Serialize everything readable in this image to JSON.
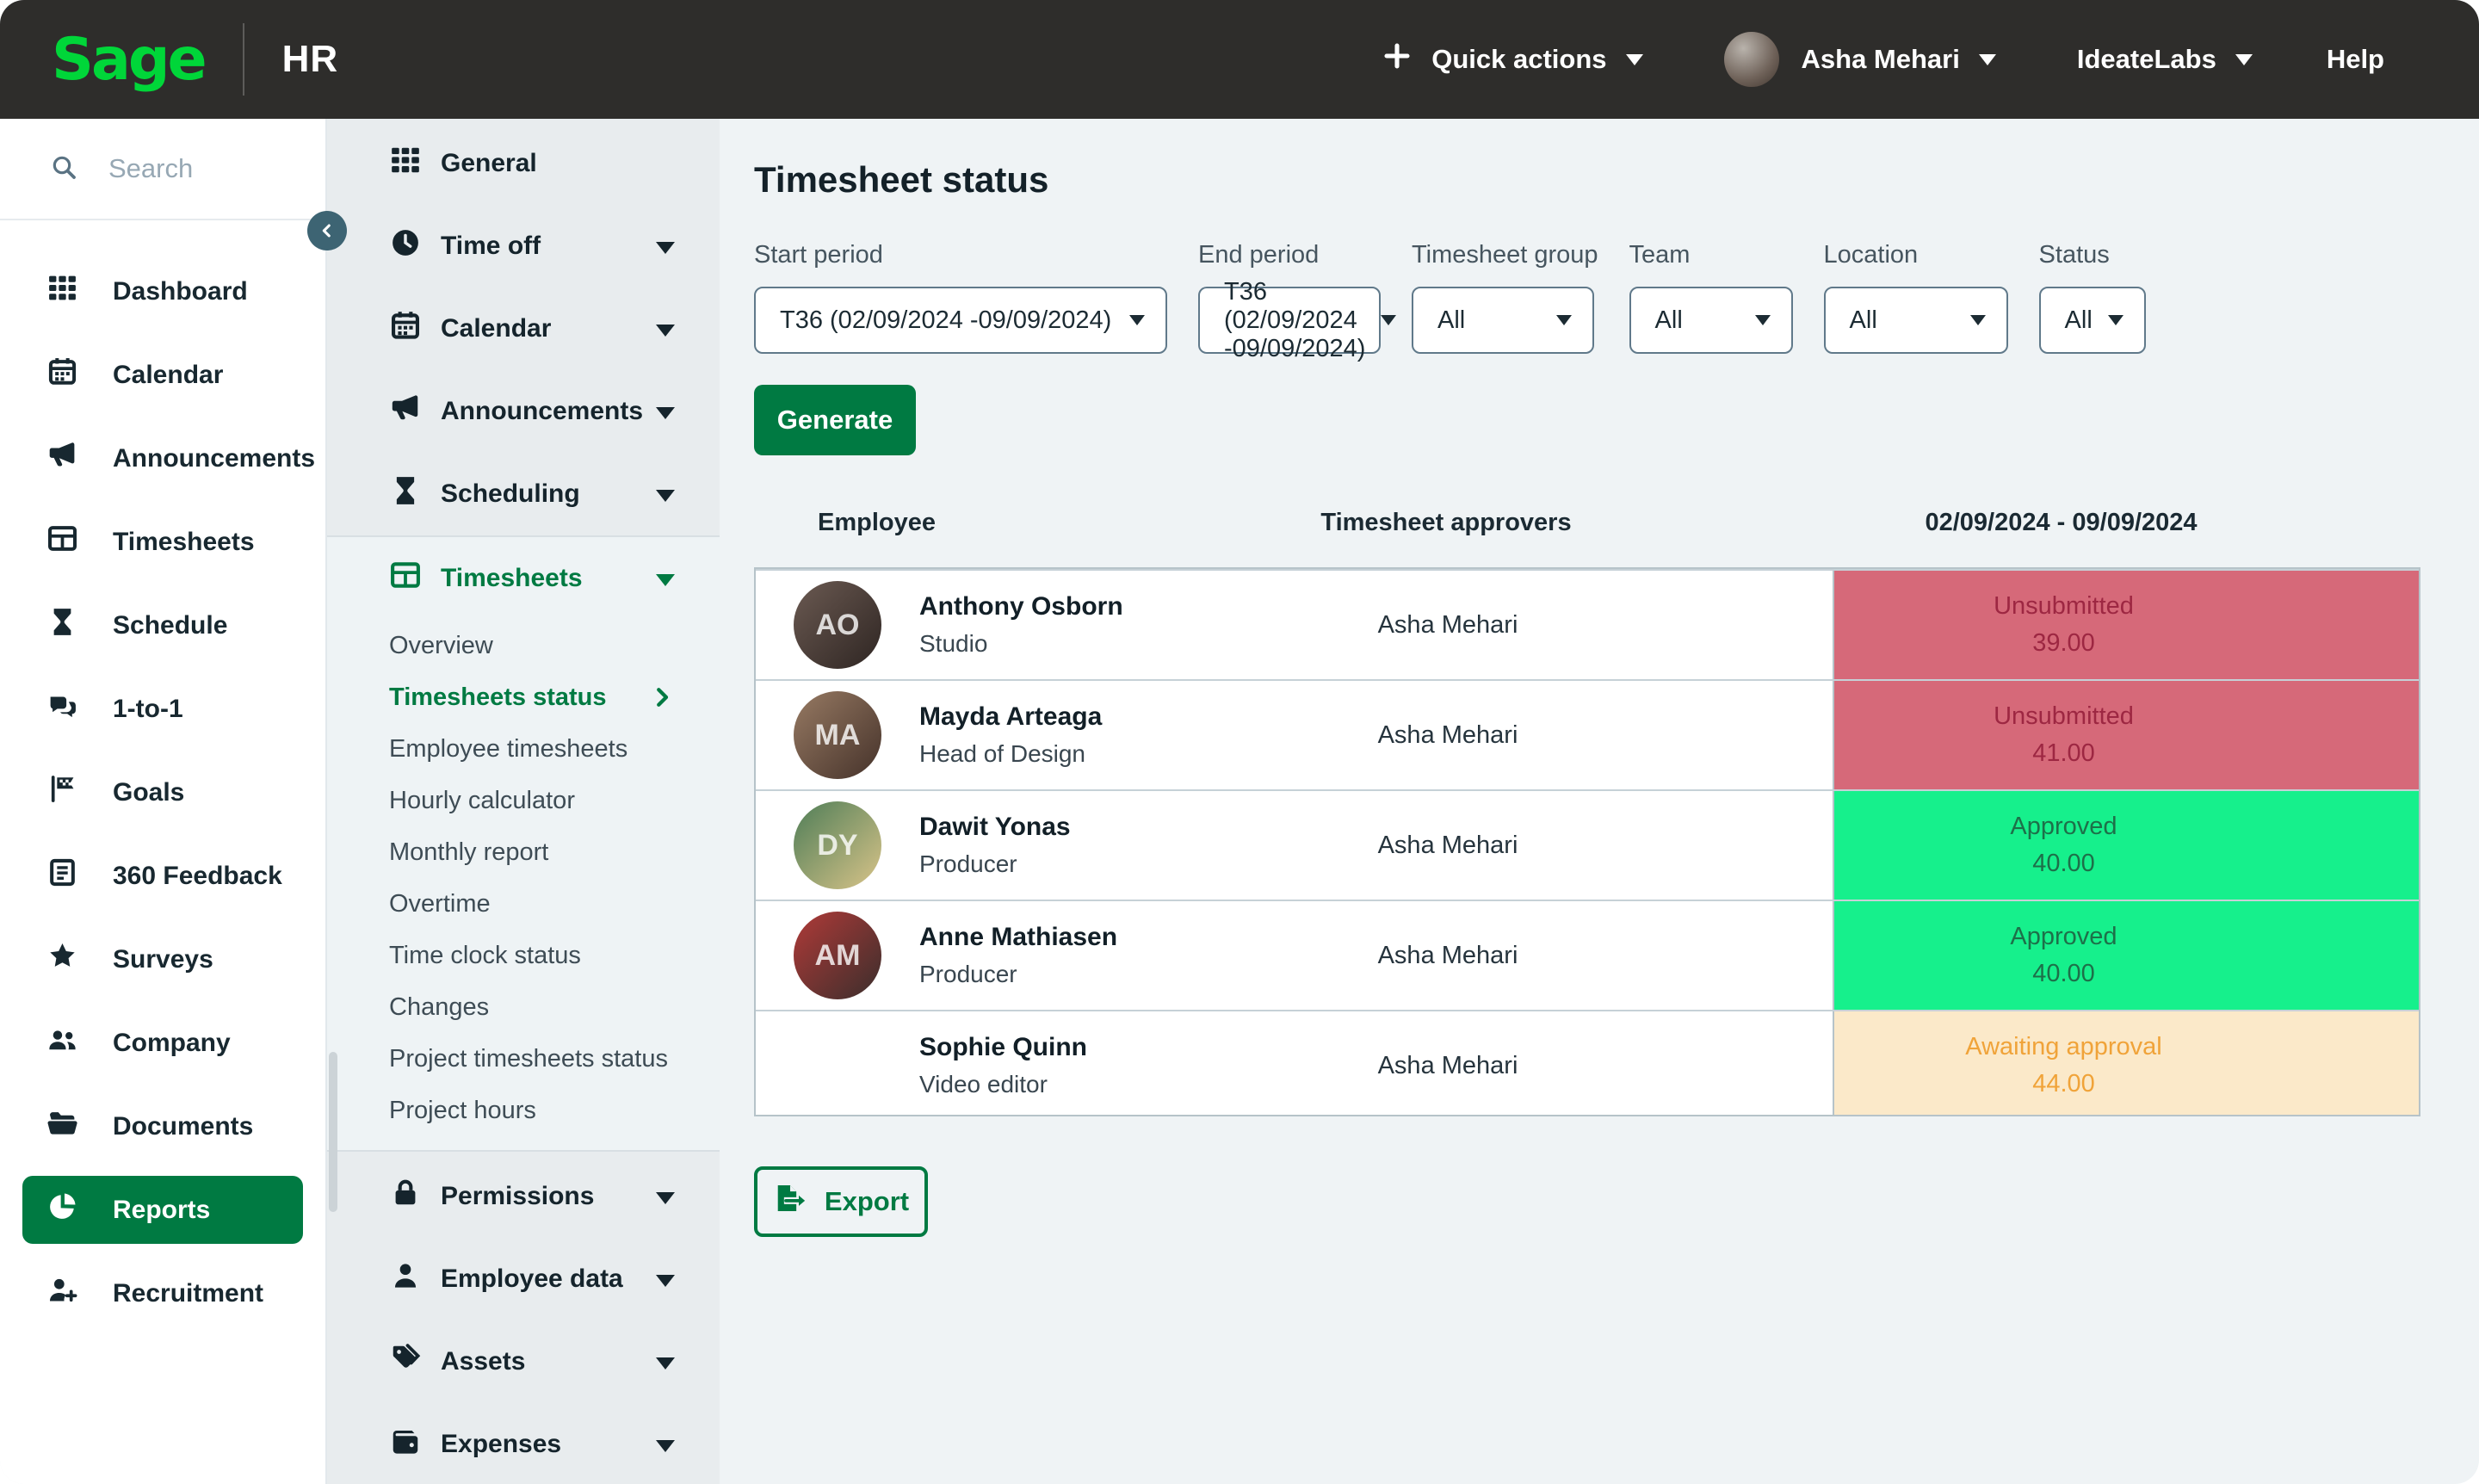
{
  "topbar": {
    "brand": "Sage",
    "product": "HR",
    "quick_actions_label": "Quick actions",
    "user_name": "Asha Mehari",
    "company_name": "IdeateLabs",
    "help_label": "Help"
  },
  "sidebar": {
    "search_placeholder": "Search",
    "items": [
      {
        "icon": "grid",
        "label": "Dashboard"
      },
      {
        "icon": "calendar",
        "label": "Calendar"
      },
      {
        "icon": "megaphone",
        "label": "Announcements"
      },
      {
        "icon": "table",
        "label": "Timesheets"
      },
      {
        "icon": "hourglass",
        "label": "Schedule"
      },
      {
        "icon": "chat",
        "label": "1-to-1"
      },
      {
        "icon": "flag",
        "label": "Goals"
      },
      {
        "icon": "clipboard",
        "label": "360 Feedback"
      },
      {
        "icon": "star",
        "label": "Surveys"
      },
      {
        "icon": "people",
        "label": "Company"
      },
      {
        "icon": "folder",
        "label": "Documents"
      },
      {
        "icon": "pie",
        "label": "Reports",
        "active": true
      },
      {
        "icon": "person-plus",
        "label": "Recruitment"
      }
    ]
  },
  "subnav": {
    "top_items": [
      {
        "icon": "grid",
        "label": "General",
        "chevron": false
      },
      {
        "icon": "clock",
        "label": "Time off",
        "chevron": true
      },
      {
        "icon": "calendar",
        "label": "Calendar",
        "chevron": true
      },
      {
        "icon": "megaphone",
        "label": "Announcements",
        "chevron": true
      },
      {
        "icon": "hourglass",
        "label": "Scheduling",
        "chevron": true
      }
    ],
    "timesheets_header": {
      "icon": "table",
      "label": "Timesheets"
    },
    "timesheets_items": [
      {
        "label": "Overview"
      },
      {
        "label": "Timesheets status",
        "active": true
      },
      {
        "label": "Employee timesheets"
      },
      {
        "label": "Hourly calculator"
      },
      {
        "label": "Monthly report"
      },
      {
        "label": "Overtime"
      },
      {
        "label": "Time clock status"
      },
      {
        "label": "Changes"
      },
      {
        "label": "Project timesheets status"
      },
      {
        "label": "Project hours"
      }
    ],
    "bottom_items": [
      {
        "icon": "lock",
        "label": "Permissions",
        "chevron": true
      },
      {
        "icon": "person",
        "label": "Employee data",
        "chevron": true
      },
      {
        "icon": "tags",
        "label": "Assets",
        "chevron": true
      },
      {
        "icon": "wallet",
        "label": "Expenses",
        "chevron": true
      }
    ]
  },
  "main": {
    "title": "Timesheet status",
    "filters": [
      {
        "label": "Start period",
        "value": "T36 (02/09/2024 -09/09/2024)"
      },
      {
        "label": "End period",
        "value": "T36 (02/09/2024 -09/09/2024)"
      },
      {
        "label": "Timesheet group",
        "value": "All"
      },
      {
        "label": "Team",
        "value": "All"
      },
      {
        "label": "Location",
        "value": "All"
      },
      {
        "label": "Status",
        "value": "All"
      }
    ],
    "generate_label": "Generate",
    "table": {
      "col_employee": "Employee",
      "col_approvers": "Timesheet approvers",
      "col_period": "02/09/2024 - 09/09/2024",
      "rows": [
        {
          "name": "Anthony Osborn",
          "role": "Studio",
          "approver": "Asha Mehari",
          "status": "Unsubmitted",
          "hours": "39.00",
          "status_type": "unsubmitted"
        },
        {
          "name": "Mayda Arteaga",
          "role": "Head of Design",
          "approver": "Asha Mehari",
          "status": "Unsubmitted",
          "hours": "41.00",
          "status_type": "unsubmitted"
        },
        {
          "name": "Dawit Yonas",
          "role": "Producer",
          "approver": "Asha Mehari",
          "status": "Approved",
          "hours": "40.00",
          "status_type": "approved"
        },
        {
          "name": "Anne Mathiasen",
          "role": "Producer",
          "approver": "Asha Mehari",
          "status": "Approved",
          "hours": "40.00",
          "status_type": "approved"
        },
        {
          "name": "Sophie Quinn",
          "role": "Video editor",
          "approver": "Asha Mehari",
          "status": "Awaiting approval",
          "hours": "44.00",
          "status_type": "awaiting"
        }
      ]
    },
    "export_label": "Export"
  },
  "colors": {
    "brand_green": "#00d639",
    "accent_green": "#007a42",
    "topbar_bg": "#2e2d2b",
    "status_unsubmitted_bg": "#d66979",
    "status_unsubmitted_text": "#9d2742",
    "status_approved_bg": "#16f08c",
    "status_approved_text": "#1d7049",
    "status_awaiting_bg": "#fbe9c9",
    "status_awaiting_text": "#f0a339"
  }
}
